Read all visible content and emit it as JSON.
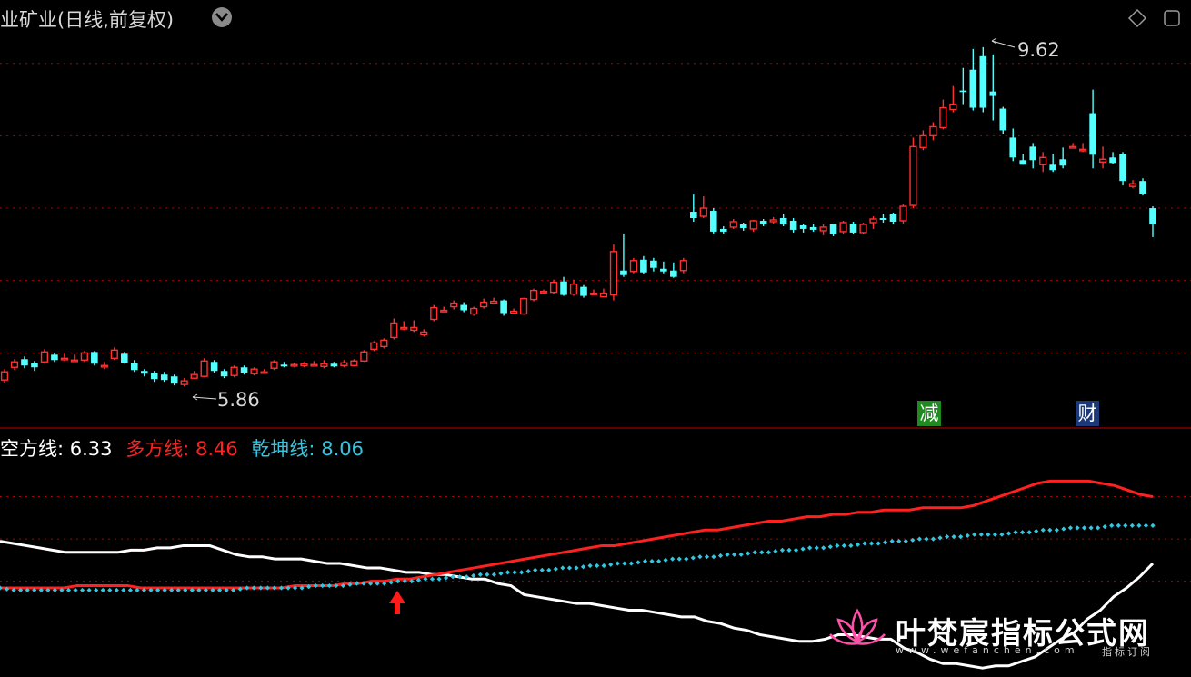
{
  "header": {
    "title": "业矿业(日线,前复权)",
    "diamond_icon": "diamond-icon",
    "window_icon": "restore-icon",
    "dropdown_icon": "chevron-down-icon"
  },
  "price_labels": {
    "high": "9.62",
    "low": "5.86"
  },
  "badges": [
    {
      "text": "减",
      "color": "#1f8a1f"
    },
    {
      "text": "财",
      "color": "#1c3a7a"
    }
  ],
  "indicator_legend": {
    "kong": {
      "label": "空方线:",
      "value": "6.33",
      "color": "#ffffff"
    },
    "duo": {
      "label": "多方线:",
      "value": "8.46",
      "color": "#ff2020"
    },
    "qian": {
      "label": "乾坤线:",
      "value": "8.06",
      "color": "#33c6e0"
    }
  },
  "chart_data": [
    {
      "type": "candlestick",
      "ylim": [
        5.5,
        9.9
      ],
      "gridlines": [
        6.2,
        7.0,
        7.8,
        8.6,
        9.4
      ],
      "candles": [
        {
          "o": 5.9,
          "c": 5.99,
          "h": 6.02,
          "l": 5.87
        },
        {
          "o": 6.04,
          "c": 6.1,
          "h": 6.13,
          "l": 6.01
        },
        {
          "o": 6.13,
          "c": 6.06,
          "h": 6.16,
          "l": 6.03
        },
        {
          "o": 6.09,
          "c": 6.04,
          "h": 6.11,
          "l": 6.0
        },
        {
          "o": 6.1,
          "c": 6.21,
          "h": 6.24,
          "l": 6.08
        },
        {
          "o": 6.18,
          "c": 6.12,
          "h": 6.2,
          "l": 6.1
        },
        {
          "o": 6.14,
          "c": 6.14,
          "h": 6.19,
          "l": 6.11
        },
        {
          "o": 6.11,
          "c": 6.12,
          "h": 6.18,
          "l": 6.1
        },
        {
          "o": 6.12,
          "c": 6.2,
          "h": 6.22,
          "l": 6.1
        },
        {
          "o": 6.21,
          "c": 6.08,
          "h": 6.22,
          "l": 6.06
        },
        {
          "o": 6.06,
          "c": 6.06,
          "h": 6.1,
          "l": 6.02
        },
        {
          "o": 6.14,
          "c": 6.23,
          "h": 6.26,
          "l": 6.12
        },
        {
          "o": 6.19,
          "c": 6.09,
          "h": 6.21,
          "l": 6.08
        },
        {
          "o": 6.09,
          "c": 6.01,
          "h": 6.12,
          "l": 5.99
        },
        {
          "o": 6.0,
          "c": 5.97,
          "h": 6.02,
          "l": 5.94
        },
        {
          "o": 5.98,
          "c": 5.91,
          "h": 6.0,
          "l": 5.88
        },
        {
          "o": 5.96,
          "c": 5.9,
          "h": 5.99,
          "l": 5.88
        },
        {
          "o": 5.94,
          "c": 5.86,
          "h": 5.96,
          "l": 5.84
        },
        {
          "o": 5.85,
          "c": 5.89,
          "h": 5.92,
          "l": 5.83
        },
        {
          "o": 5.92,
          "c": 5.96,
          "h": 6.0,
          "l": 5.91
        },
        {
          "o": 5.94,
          "c": 6.11,
          "h": 6.14,
          "l": 5.93
        },
        {
          "o": 6.1,
          "c": 6.0,
          "h": 6.12,
          "l": 5.98
        },
        {
          "o": 6.0,
          "c": 5.94,
          "h": 6.02,
          "l": 5.92
        },
        {
          "o": 5.95,
          "c": 6.04,
          "h": 6.06,
          "l": 5.93
        },
        {
          "o": 6.04,
          "c": 5.98,
          "h": 6.06,
          "l": 5.96
        },
        {
          "o": 5.97,
          "c": 6.02,
          "h": 6.04,
          "l": 5.95
        },
        {
          "o": 5.99,
          "c": 5.99,
          "h": 6.02,
          "l": 5.97
        },
        {
          "o": 6.03,
          "c": 6.1,
          "h": 6.12,
          "l": 6.01
        },
        {
          "o": 6.07,
          "c": 6.05,
          "h": 6.1,
          "l": 6.04
        },
        {
          "o": 6.07,
          "c": 6.07,
          "h": 6.09,
          "l": 6.04
        },
        {
          "o": 6.06,
          "c": 6.08,
          "h": 6.1,
          "l": 6.04
        },
        {
          "o": 6.07,
          "c": 6.07,
          "h": 6.11,
          "l": 6.05
        },
        {
          "o": 6.05,
          "c": 6.08,
          "h": 6.12,
          "l": 6.03
        },
        {
          "o": 6.08,
          "c": 6.05,
          "h": 6.1,
          "l": 6.04
        },
        {
          "o": 6.06,
          "c": 6.09,
          "h": 6.12,
          "l": 6.04
        },
        {
          "o": 6.06,
          "c": 6.11,
          "h": 6.13,
          "l": 6.05
        },
        {
          "o": 6.11,
          "c": 6.21,
          "h": 6.23,
          "l": 6.1
        },
        {
          "o": 6.24,
          "c": 6.31,
          "h": 6.33,
          "l": 6.22
        },
        {
          "o": 6.27,
          "c": 6.34,
          "h": 6.36,
          "l": 6.25
        },
        {
          "o": 6.37,
          "c": 6.53,
          "h": 6.58,
          "l": 6.35
        },
        {
          "o": 6.48,
          "c": 6.48,
          "h": 6.55,
          "l": 6.45
        },
        {
          "o": 6.45,
          "c": 6.48,
          "h": 6.56,
          "l": 6.43
        },
        {
          "o": 6.4,
          "c": 6.43,
          "h": 6.46,
          "l": 6.38
        },
        {
          "o": 6.57,
          "c": 6.7,
          "h": 6.73,
          "l": 6.55
        },
        {
          "o": 6.67,
          "c": 6.67,
          "h": 6.71,
          "l": 6.65
        },
        {
          "o": 6.71,
          "c": 6.75,
          "h": 6.78,
          "l": 6.68
        },
        {
          "o": 6.73,
          "c": 6.67,
          "h": 6.76,
          "l": 6.65
        },
        {
          "o": 6.63,
          "c": 6.69,
          "h": 6.71,
          "l": 6.61
        },
        {
          "o": 6.71,
          "c": 6.76,
          "h": 6.8,
          "l": 6.69
        },
        {
          "o": 6.75,
          "c": 6.77,
          "h": 6.81,
          "l": 6.74
        },
        {
          "o": 6.78,
          "c": 6.64,
          "h": 6.79,
          "l": 6.61
        },
        {
          "o": 6.64,
          "c": 6.66,
          "h": 6.69,
          "l": 6.63
        },
        {
          "o": 6.63,
          "c": 6.8,
          "h": 6.81,
          "l": 6.62
        },
        {
          "o": 6.79,
          "c": 6.89,
          "h": 6.91,
          "l": 6.77
        },
        {
          "o": 6.87,
          "c": 6.88,
          "h": 6.9,
          "l": 6.85
        },
        {
          "o": 6.87,
          "c": 6.98,
          "h": 7.01,
          "l": 6.85
        },
        {
          "o": 6.99,
          "c": 6.84,
          "h": 7.04,
          "l": 6.83
        },
        {
          "o": 6.85,
          "c": 6.96,
          "h": 7.01,
          "l": 6.83
        },
        {
          "o": 6.93,
          "c": 6.83,
          "h": 6.95,
          "l": 6.81
        },
        {
          "o": 6.86,
          "c": 6.86,
          "h": 6.9,
          "l": 6.84
        },
        {
          "o": 6.82,
          "c": 6.86,
          "h": 6.91,
          "l": 6.82
        },
        {
          "o": 6.84,
          "c": 7.32,
          "h": 7.4,
          "l": 6.78
        },
        {
          "o": 7.11,
          "c": 7.06,
          "h": 7.52,
          "l": 7.04
        },
        {
          "o": 7.1,
          "c": 7.22,
          "h": 7.25,
          "l": 7.08
        },
        {
          "o": 7.23,
          "c": 7.09,
          "h": 7.27,
          "l": 7.07
        },
        {
          "o": 7.22,
          "c": 7.14,
          "h": 7.25,
          "l": 7.1
        },
        {
          "o": 7.13,
          "c": 7.1,
          "h": 7.21,
          "l": 7.08
        },
        {
          "o": 7.11,
          "c": 7.04,
          "h": 7.2,
          "l": 7.03
        },
        {
          "o": 7.11,
          "c": 7.22,
          "h": 7.25,
          "l": 7.08
        },
        {
          "o": 7.76,
          "c": 7.69,
          "h": 7.95,
          "l": 7.65
        },
        {
          "o": 7.71,
          "c": 7.8,
          "h": 7.93,
          "l": 7.69
        },
        {
          "o": 7.77,
          "c": 7.54,
          "h": 7.8,
          "l": 7.52
        },
        {
          "o": 7.57,
          "c": 7.54,
          "h": 7.6,
          "l": 7.52
        },
        {
          "o": 7.59,
          "c": 7.65,
          "h": 7.68,
          "l": 7.57
        },
        {
          "o": 7.62,
          "c": 7.58,
          "h": 7.64,
          "l": 7.55
        },
        {
          "o": 7.57,
          "c": 7.66,
          "h": 7.67,
          "l": 7.54
        },
        {
          "o": 7.66,
          "c": 7.62,
          "h": 7.68,
          "l": 7.6
        },
        {
          "o": 7.65,
          "c": 7.67,
          "h": 7.7,
          "l": 7.63
        },
        {
          "o": 7.69,
          "c": 7.62,
          "h": 7.73,
          "l": 7.6
        },
        {
          "o": 7.66,
          "c": 7.56,
          "h": 7.69,
          "l": 7.53
        },
        {
          "o": 7.61,
          "c": 7.57,
          "h": 7.63,
          "l": 7.53
        },
        {
          "o": 7.59,
          "c": 7.56,
          "h": 7.62,
          "l": 7.54
        },
        {
          "o": 7.55,
          "c": 7.59,
          "h": 7.62,
          "l": 7.5
        },
        {
          "o": 7.62,
          "c": 7.51,
          "h": 7.63,
          "l": 7.49
        },
        {
          "o": 7.54,
          "c": 7.64,
          "h": 7.66,
          "l": 7.51
        },
        {
          "o": 7.63,
          "c": 7.53,
          "h": 7.65,
          "l": 7.51
        },
        {
          "o": 7.53,
          "c": 7.62,
          "h": 7.64,
          "l": 7.51
        },
        {
          "o": 7.64,
          "c": 7.68,
          "h": 7.71,
          "l": 7.57
        },
        {
          "o": 7.69,
          "c": 7.67,
          "h": 7.73,
          "l": 7.64
        },
        {
          "o": 7.73,
          "c": 7.65,
          "h": 7.75,
          "l": 7.62
        },
        {
          "o": 7.66,
          "c": 7.82,
          "h": 7.84,
          "l": 7.63
        },
        {
          "o": 7.83,
          "c": 8.48,
          "h": 8.58,
          "l": 7.8
        },
        {
          "o": 8.47,
          "c": 8.6,
          "h": 8.66,
          "l": 8.44
        },
        {
          "o": 8.6,
          "c": 8.7,
          "h": 8.75,
          "l": 8.55
        },
        {
          "o": 8.69,
          "c": 8.91,
          "h": 9.0,
          "l": 8.67
        },
        {
          "o": 8.89,
          "c": 8.95,
          "h": 9.15,
          "l": 8.86
        },
        {
          "o": 9.1,
          "c": 9.09,
          "h": 9.35,
          "l": 8.95
        },
        {
          "o": 9.33,
          "c": 8.91,
          "h": 9.56,
          "l": 8.88
        },
        {
          "o": 9.48,
          "c": 8.91,
          "h": 9.58,
          "l": 8.86
        },
        {
          "o": 9.09,
          "c": 9.04,
          "h": 9.5,
          "l": 8.77
        },
        {
          "o": 8.9,
          "c": 8.66,
          "h": 8.92,
          "l": 8.62
        },
        {
          "o": 8.58,
          "c": 8.36,
          "h": 8.68,
          "l": 8.32
        },
        {
          "o": 8.33,
          "c": 8.28,
          "h": 8.4,
          "l": 8.28
        },
        {
          "o": 8.48,
          "c": 8.33,
          "h": 8.52,
          "l": 8.24
        },
        {
          "o": 8.28,
          "c": 8.36,
          "h": 8.42,
          "l": 8.2
        },
        {
          "o": 8.28,
          "c": 8.22,
          "h": 8.4,
          "l": 8.2
        },
        {
          "o": 8.34,
          "c": 8.27,
          "h": 8.47,
          "l": 8.24
        },
        {
          "o": 8.48,
          "c": 8.48,
          "h": 8.52,
          "l": 8.46
        },
        {
          "o": 8.45,
          "c": 8.45,
          "h": 8.52,
          "l": 8.42
        },
        {
          "o": 8.85,
          "c": 8.39,
          "h": 9.11,
          "l": 8.24
        },
        {
          "o": 8.31,
          "c": 8.34,
          "h": 8.48,
          "l": 8.24
        },
        {
          "o": 8.36,
          "c": 8.3,
          "h": 8.42,
          "l": 8.29
        },
        {
          "o": 8.4,
          "c": 8.1,
          "h": 8.42,
          "l": 8.05
        },
        {
          "o": 8.04,
          "c": 8.07,
          "h": 8.11,
          "l": 8.02
        },
        {
          "o": 8.1,
          "c": 7.96,
          "h": 8.13,
          "l": 7.94
        },
        {
          "o": 7.8,
          "c": 7.62,
          "h": 7.82,
          "l": 7.48
        }
      ],
      "price_high": 9.62,
      "price_low": 5.86
    },
    {
      "type": "line",
      "title": "",
      "ylim": [
        0,
        100
      ],
      "gridlines": [
        81,
        62,
        43
      ],
      "series": [
        {
          "name": "空方线",
          "color": "#ffffff",
          "values": [
            61,
            60,
            59,
            58,
            57,
            56,
            56,
            56,
            56,
            56,
            57,
            57,
            58,
            58,
            59,
            59,
            59,
            57,
            55,
            54,
            54,
            53,
            53,
            53,
            52,
            51,
            51,
            50,
            49,
            49,
            48,
            47,
            47,
            46,
            46,
            45,
            44,
            44,
            42,
            41,
            37,
            36,
            35,
            34,
            33,
            33,
            32,
            31,
            30,
            30,
            29,
            28,
            27,
            27,
            25,
            24,
            22,
            21,
            19,
            18,
            17,
            16,
            16,
            17,
            19,
            19,
            18,
            17,
            17,
            13,
            11,
            8,
            6,
            6,
            5,
            4,
            5,
            5,
            7,
            9,
            13,
            17,
            20,
            26,
            30,
            36,
            40,
            45,
            51
          ]
        },
        {
          "name": "多方线",
          "color": "#ff2020",
          "values": [
            40,
            40,
            40,
            40,
            40,
            40,
            41,
            41,
            41,
            41,
            41,
            40,
            40,
            40,
            40,
            40,
            40,
            40,
            40,
            40,
            40,
            40,
            40,
            41,
            41,
            41,
            41,
            42,
            42,
            43,
            43,
            44,
            44,
            45,
            46,
            47,
            48,
            49,
            50,
            51,
            52,
            53,
            54,
            55,
            56,
            57,
            58,
            59,
            59,
            60,
            61,
            62,
            63,
            64,
            65,
            66,
            66,
            67,
            68,
            69,
            70,
            70,
            71,
            72,
            72,
            73,
            73,
            74,
            74,
            75,
            75,
            75,
            76,
            76,
            76,
            76,
            77,
            79,
            81,
            83,
            85,
            87,
            88,
            88,
            88,
            88,
            87,
            86,
            84,
            82,
            81
          ]
        },
        {
          "name": "乾坤线",
          "color": "#33c6e0",
          "values": [
            40,
            39,
            39,
            39,
            39,
            39,
            39,
            39,
            39,
            39,
            39,
            39,
            39,
            39,
            39,
            39,
            39,
            39,
            40,
            40,
            40,
            40,
            40,
            41,
            41,
            41,
            42,
            42,
            42,
            43,
            43,
            44,
            44,
            45,
            45,
            46,
            46,
            47,
            47,
            48,
            48,
            49,
            49,
            50,
            50,
            51,
            51,
            52,
            52,
            53,
            53,
            54,
            54,
            55,
            55,
            56,
            56,
            57,
            57,
            58,
            58,
            59,
            59,
            60,
            60,
            61,
            61,
            62,
            62,
            63,
            63,
            64,
            64,
            64,
            65,
            65,
            66,
            66,
            67,
            67,
            67,
            68,
            68,
            68,
            68
          ]
        }
      ]
    }
  ],
  "watermark": {
    "title": "叶梵宸指标公式网",
    "url": "www.wefanchen.com",
    "tag": "指标订阅"
  }
}
